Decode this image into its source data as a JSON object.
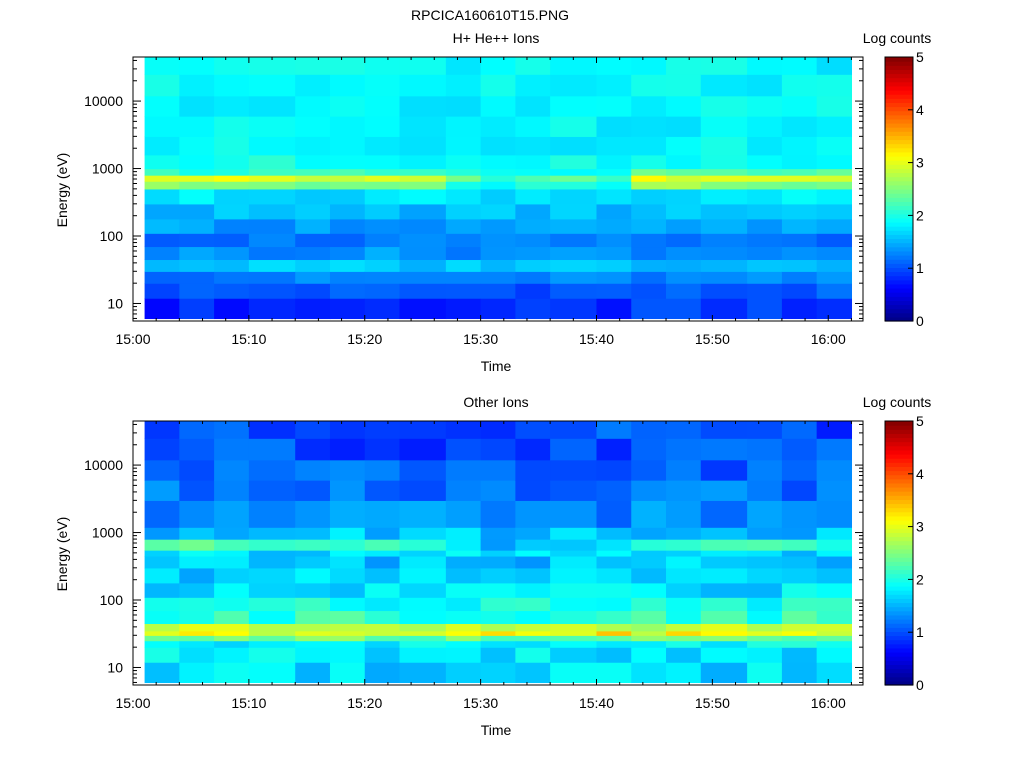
{
  "figure_title": "RPCICA160610T15.PNG",
  "chart_data": [
    {
      "type": "heatmap",
      "title": "H+ He++ Ions",
      "xlabel": "Time",
      "ylabel": "Energy (eV)",
      "x_ticks": [
        "15:00",
        "15:10",
        "15:20",
        "15:30",
        "15:40",
        "15:50",
        "16:00"
      ],
      "xlim": [
        "15:00",
        "16:03"
      ],
      "x_data_range": [
        "15:01",
        "16:02"
      ],
      "y_scale": "log",
      "ylim": [
        5.5,
        45000
      ],
      "y_tick_labels": [
        "10",
        "100",
        "1000",
        "10000"
      ],
      "colorbar": {
        "label": "Log counts",
        "range": [
          0,
          5
        ],
        "ticks": [
          "0",
          "1",
          "2",
          "3",
          "4",
          "5"
        ]
      },
      "time_columns": [
        "15:01",
        "15:04",
        "15:07",
        "15:10",
        "15:14",
        "15:17",
        "15:20",
        "15:23",
        "15:27",
        "15:30",
        "15:33",
        "15:36",
        "15:40",
        "15:43",
        "15:46",
        "15:49",
        "15:53",
        "15:56",
        "15:59"
      ],
      "energy_bands_eV": [
        [
          6,
          12
        ],
        [
          12,
          20
        ],
        [
          20,
          30
        ],
        [
          30,
          45
        ],
        [
          45,
          70
        ],
        [
          70,
          110
        ],
        [
          110,
          180
        ],
        [
          180,
          300
        ],
        [
          300,
          500
        ],
        [
          500,
          650
        ],
        [
          650,
          800
        ],
        [
          800,
          1000
        ],
        [
          1000,
          1600
        ],
        [
          1600,
          3000
        ],
        [
          3000,
          6000
        ],
        [
          6000,
          12000
        ],
        [
          12000,
          25000
        ],
        [
          25000,
          45000
        ]
      ],
      "band_profile_log_counts": [
        0.8,
        1.05,
        1.25,
        1.6,
        1.35,
        1.2,
        1.4,
        1.55,
        1.75,
        2.5,
        2.9,
        2.1,
        1.95,
        1.85,
        1.85,
        1.85,
        1.85,
        1.85
      ],
      "column_adjust": [
        [
          0,
          0,
          0,
          0,
          0,
          0,
          0,
          0,
          0,
          0,
          0,
          0,
          0,
          0.1,
          0.15,
          0.05,
          0.1,
          0,
          0
        ],
        [
          0,
          0,
          0,
          0,
          0,
          0,
          0,
          0,
          0,
          0,
          0,
          0,
          0,
          0,
          0,
          0,
          0,
          0,
          0
        ],
        [
          0,
          0,
          0,
          0,
          0,
          0,
          0,
          0,
          0,
          0,
          0,
          0,
          0,
          0,
          0,
          0,
          0,
          0,
          0
        ],
        [
          0,
          0,
          0,
          0,
          0,
          0,
          0,
          0,
          0,
          0.05,
          0.1,
          0,
          0,
          0,
          0,
          0,
          0,
          0,
          0
        ],
        [
          0,
          0,
          0,
          0,
          0,
          0,
          0,
          0,
          0,
          0,
          0,
          0,
          0,
          0,
          0,
          0,
          0,
          0,
          0
        ],
        [
          0,
          0,
          0,
          0,
          0,
          0,
          0,
          0,
          0,
          0,
          0,
          0,
          0,
          0,
          0,
          0,
          0,
          0,
          0
        ],
        [
          0,
          0,
          0,
          0,
          0,
          0,
          0,
          0,
          0,
          0,
          0,
          0,
          0,
          0,
          0,
          0,
          0,
          0,
          0
        ],
        [
          0,
          0,
          0,
          0,
          0,
          0,
          0,
          0,
          0,
          0,
          0,
          0,
          0,
          0,
          0,
          0,
          0,
          0,
          0
        ],
        [
          0,
          0,
          0,
          0,
          0,
          0,
          0,
          0,
          0,
          0,
          0,
          0,
          0,
          0,
          0,
          0,
          0,
          0,
          0
        ],
        [
          0,
          0.05,
          0.05,
          0,
          0,
          -0.05,
          0,
          0,
          -0.5,
          -0.6,
          -0.5,
          -0.4,
          -0.7,
          0.1,
          0.1,
          0.05,
          0,
          0,
          0.05
        ],
        [
          0,
          0,
          0.05,
          0,
          0,
          0,
          0,
          0,
          -0.5,
          -0.7,
          -0.6,
          -0.6,
          -0.8,
          0.15,
          0.05,
          0,
          0,
          0,
          0.1
        ],
        [
          0,
          0,
          0,
          0,
          0,
          0,
          0,
          0,
          -0.2,
          -0.2,
          -0.2,
          -0.2,
          -0.3,
          0.3,
          0.15,
          0.1,
          0.1,
          0.05,
          0.2
        ],
        [
          0,
          0,
          0,
          0,
          0,
          0,
          0,
          0,
          0,
          0,
          0,
          0,
          0,
          0,
          0,
          0,
          0,
          0,
          0
        ],
        [
          0,
          0,
          0,
          0,
          0,
          0,
          0,
          0,
          0,
          0,
          0,
          0,
          0,
          0,
          0,
          0,
          0,
          0,
          0
        ],
        [
          0,
          0,
          0,
          0,
          0,
          0,
          0,
          0,
          0,
          0,
          0,
          0,
          0,
          0,
          0,
          0,
          0,
          0,
          0
        ],
        [
          0,
          0,
          0,
          0,
          0,
          0,
          0,
          0,
          0,
          0,
          0,
          0,
          0,
          0,
          0,
          0,
          0,
          0,
          0
        ],
        [
          0,
          0,
          0,
          0,
          0,
          0,
          0,
          0,
          0,
          0,
          0,
          0,
          0,
          0,
          0,
          0,
          0,
          0,
          0
        ],
        [
          0,
          0,
          0,
          0,
          0,
          0,
          0,
          0,
          0,
          0,
          0,
          0,
          0,
          0,
          0,
          0,
          0,
          0,
          0
        ]
      ],
      "texture": 0.15
    },
    {
      "type": "heatmap",
      "title": "Other Ions",
      "xlabel": "Time",
      "ylabel": "Energy (eV)",
      "x_ticks": [
        "15:00",
        "15:10",
        "15:20",
        "15:30",
        "15:40",
        "15:50",
        "16:00"
      ],
      "xlim": [
        "15:00",
        "16:03"
      ],
      "x_data_range": [
        "15:01",
        "16:02"
      ],
      "y_scale": "log",
      "ylim": [
        5.5,
        45000
      ],
      "y_tick_labels": [
        "10",
        "100",
        "1000",
        "10000"
      ],
      "colorbar": {
        "label": "Log counts",
        "range": [
          0,
          5
        ],
        "ticks": [
          "0",
          "1",
          "2",
          "3",
          "4",
          "5"
        ]
      },
      "time_columns": [
        "15:01",
        "15:04",
        "15:07",
        "15:10",
        "15:14",
        "15:17",
        "15:20",
        "15:23",
        "15:27",
        "15:30",
        "15:33",
        "15:36",
        "15:40",
        "15:43",
        "15:46",
        "15:49",
        "15:53",
        "15:56",
        "15:59"
      ],
      "energy_bands_eV": [
        [
          6,
          12
        ],
        [
          12,
          20
        ],
        [
          20,
          25
        ],
        [
          25,
          30
        ],
        [
          30,
          35
        ],
        [
          35,
          45
        ],
        [
          45,
          70
        ],
        [
          70,
          110
        ],
        [
          110,
          180
        ],
        [
          180,
          300
        ],
        [
          300,
          450
        ],
        [
          450,
          550
        ],
        [
          550,
          800
        ],
        [
          800,
          1200
        ],
        [
          1200,
          3000
        ],
        [
          3000,
          6000
        ],
        [
          6000,
          12000
        ],
        [
          12000,
          25000
        ],
        [
          25000,
          45000
        ]
      ],
      "band_profile_log_counts": [
        1.7,
        1.75,
        1.9,
        2.4,
        3.0,
        2.8,
        2.1,
        1.95,
        1.75,
        1.65,
        1.6,
        1.7,
        2.2,
        1.6,
        1.3,
        1.2,
        1.1,
        1.0,
        1.0
      ],
      "column_adjust": [
        [
          0,
          0,
          0,
          0,
          0,
          0,
          0,
          0,
          0,
          0,
          0,
          0,
          0,
          0,
          0,
          0,
          0,
          0,
          0
        ],
        [
          0,
          0,
          0,
          0,
          0,
          0,
          0,
          0,
          0,
          0,
          0,
          0,
          0,
          0,
          0,
          0,
          0,
          0,
          0
        ],
        [
          0,
          0,
          0,
          0,
          0,
          0,
          0,
          0,
          0,
          0,
          0,
          0,
          0,
          0,
          0,
          0,
          0,
          0,
          0
        ],
        [
          0,
          0,
          0,
          0,
          0,
          0,
          0,
          0,
          0,
          0,
          0,
          0,
          0,
          0,
          0,
          0,
          0,
          0,
          0
        ],
        [
          0,
          0,
          0,
          0,
          0,
          0,
          0,
          0.1,
          0.3,
          0.2,
          0.3,
          0.2,
          0.35,
          0,
          0.1,
          0.1,
          0.1,
          0.2,
          0
        ],
        [
          0,
          0,
          0,
          0,
          0,
          0,
          0,
          0,
          0.1,
          0.1,
          0.1,
          0,
          0.1,
          0,
          0,
          0,
          0,
          0,
          0
        ],
        [
          0,
          0,
          0,
          0,
          0,
          0,
          0,
          0,
          0,
          0,
          0,
          0,
          0,
          0,
          0,
          0,
          0,
          0,
          0
        ],
        [
          0,
          0,
          0,
          0,
          0,
          0,
          0,
          0,
          0,
          0,
          0,
          0,
          0,
          0,
          0,
          0,
          0,
          0,
          0
        ],
        [
          0,
          0,
          0,
          0,
          0,
          0,
          0,
          0,
          0,
          0,
          0,
          0,
          0,
          0,
          0,
          0,
          0,
          0,
          0
        ],
        [
          0,
          0,
          0,
          0,
          0,
          0,
          0,
          0,
          0,
          0,
          0,
          0,
          0,
          0,
          0,
          0,
          0,
          0,
          0
        ],
        [
          0,
          0,
          0,
          0,
          0,
          0,
          0,
          0,
          0,
          0,
          0,
          0,
          0,
          0,
          0,
          0,
          0,
          0,
          0
        ],
        [
          0,
          0,
          0,
          0,
          0,
          0,
          0,
          0,
          0,
          0,
          0,
          0,
          0,
          0,
          0,
          0,
          0,
          0,
          0
        ],
        [
          0,
          0,
          0,
          0,
          0,
          0,
          0,
          0,
          -0.5,
          -0.6,
          -0.5,
          -0.5,
          -0.7,
          0,
          0,
          0,
          0,
          0,
          0
        ],
        [
          0,
          0,
          0,
          0,
          0,
          0,
          0,
          0,
          0,
          0,
          0,
          0,
          0,
          0,
          0,
          0,
          0,
          0,
          0
        ],
        [
          0,
          0,
          0,
          0,
          0,
          0,
          0,
          0,
          0,
          0,
          0,
          0,
          0,
          0,
          0,
          0,
          0,
          0,
          0
        ],
        [
          0,
          0,
          0,
          0,
          0,
          0,
          0,
          0,
          0,
          0,
          0,
          0,
          0,
          0,
          0,
          0,
          0,
          0,
          0
        ],
        [
          0,
          0,
          0,
          0,
          0,
          0,
          0,
          0,
          0,
          0,
          0,
          0,
          0,
          0,
          0,
          0,
          0,
          0,
          0
        ],
        [
          0,
          0,
          0,
          0,
          0,
          0,
          0,
          0,
          0,
          0,
          0,
          0,
          0,
          0,
          0,
          0,
          0,
          0,
          0
        ],
        [
          0,
          0,
          0,
          0,
          0,
          0,
          0,
          0,
          0,
          0,
          0,
          0,
          0,
          0,
          0,
          0,
          0,
          0,
          0
        ]
      ],
      "texture": 0.25
    }
  ]
}
